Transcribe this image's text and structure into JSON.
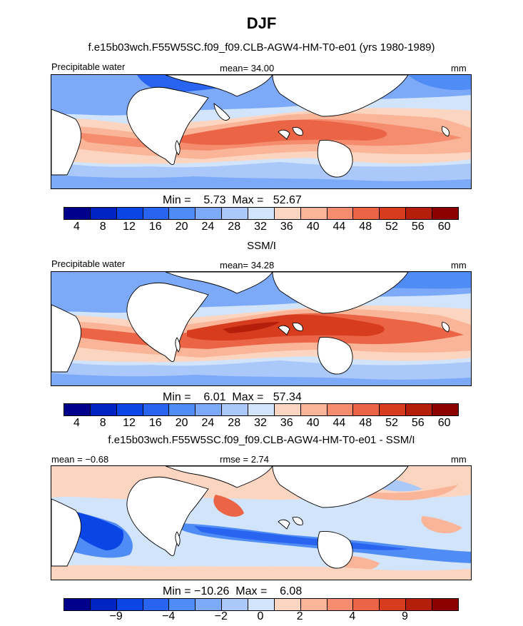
{
  "title": "DJF",
  "panels": [
    {
      "id": "model",
      "heading": "f.e15b03wch.F55W5SC.f09_f09.CLB-AGW4-HM-T0-e01 (yrs 1980-1989)",
      "left_label": "Precipitable water",
      "center_label": "mean=  34.00",
      "right_label": "mm",
      "minmax": "Min =    5.73  Max =   52.67",
      "colorbar_ticks": [
        "4",
        "8",
        "12",
        "16",
        "20",
        "24",
        "28",
        "32",
        "36",
        "40",
        "44",
        "48",
        "52",
        "56",
        "60"
      ]
    },
    {
      "id": "obs",
      "heading": "SSM/I",
      "left_label": "Precipitable water",
      "center_label": "mean=  34.28",
      "right_label": "mm",
      "minmax": "Min =    6.01  Max =   57.34",
      "colorbar_ticks": [
        "4",
        "8",
        "12",
        "16",
        "20",
        "24",
        "28",
        "32",
        "36",
        "40",
        "44",
        "48",
        "52",
        "56",
        "60"
      ]
    },
    {
      "id": "diff",
      "heading": "f.e15b03wch.F55W5SC.f09_f09.CLB-AGW4-HM-T0-e01 - SSM/I",
      "left_label": "mean =  −0.68",
      "center_label": "rmse =    2.74",
      "right_label": "mm",
      "minmax": "Min = −10.26  Max =    6.08",
      "colorbar_ticks": [
        "−9",
        "−4",
        "−2",
        "0",
        "2",
        "4",
        "9"
      ]
    }
  ],
  "colorbar_colors": [
    "#00008c",
    "#0023c3",
    "#0a46e6",
    "#2864f0",
    "#508cf5",
    "#7daaf8",
    "#aac8fa",
    "#d2e4fa",
    "#fcd5c1",
    "#fab498",
    "#f58c6e",
    "#eb6446",
    "#d73c1e",
    "#b41e0a",
    "#8c0000"
  ],
  "chart_data": {
    "type": "heatmap",
    "title": "DJF",
    "maps": [
      {
        "panel": "model",
        "variable": "Precipitable water",
        "units": "mm",
        "mean": 34.0,
        "min": 5.73,
        "max": 52.67,
        "contour_levels": [
          4,
          8,
          12,
          16,
          20,
          24,
          28,
          32,
          36,
          40,
          44,
          48,
          52,
          56,
          60
        ]
      },
      {
        "panel": "obs",
        "variable": "Precipitable water",
        "units": "mm",
        "mean": 34.28,
        "min": 6.01,
        "max": 57.34,
        "contour_levels": [
          4,
          8,
          12,
          16,
          20,
          24,
          28,
          32,
          36,
          40,
          44,
          48,
          52,
          56,
          60
        ]
      },
      {
        "panel": "diff",
        "units": "mm",
        "mean": -0.68,
        "rmse": 2.74,
        "min": -10.26,
        "max": 6.08,
        "contour_levels": [
          -9,
          -4,
          -2,
          0,
          2,
          4,
          9
        ]
      }
    ]
  }
}
